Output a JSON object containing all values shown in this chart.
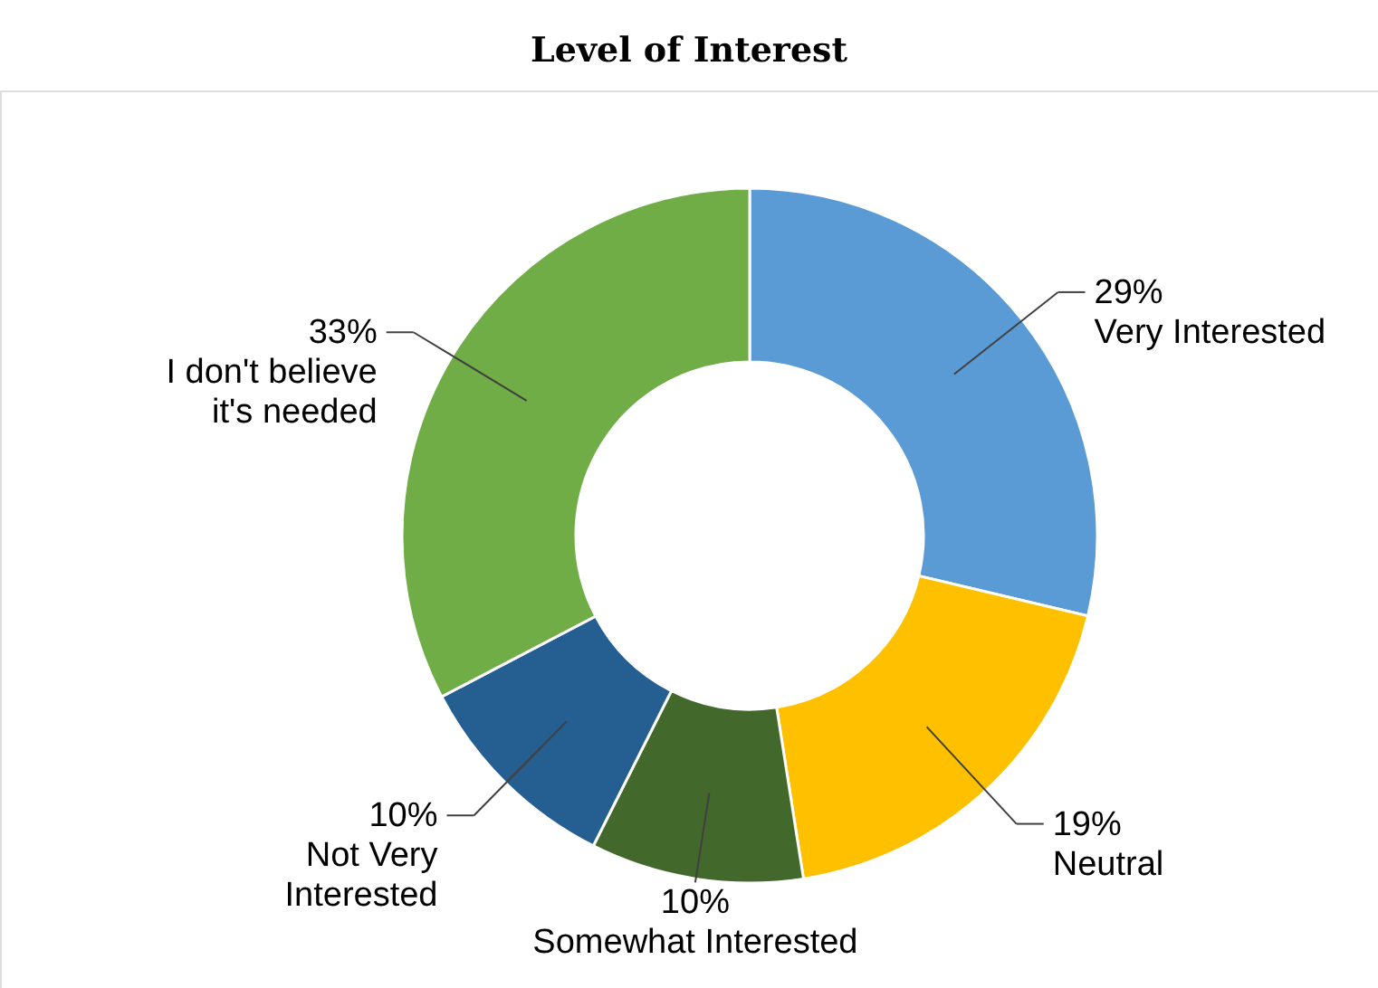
{
  "chart_data": {
    "type": "donut",
    "title": "Level of Interest",
    "categories": [
      "Very Interested",
      "Neutral",
      "Somewhat Interested",
      "Not Very Interested",
      "I don't believe it's needed"
    ],
    "values": [
      29,
      19,
      10,
      10,
      33
    ],
    "value_labels": [
      "29%",
      "19%",
      "10%",
      "10%",
      "33%"
    ],
    "colors": [
      "#5b9bd5",
      "#ffc000",
      "#43682b",
      "#255e91",
      "#70ad47"
    ]
  }
}
